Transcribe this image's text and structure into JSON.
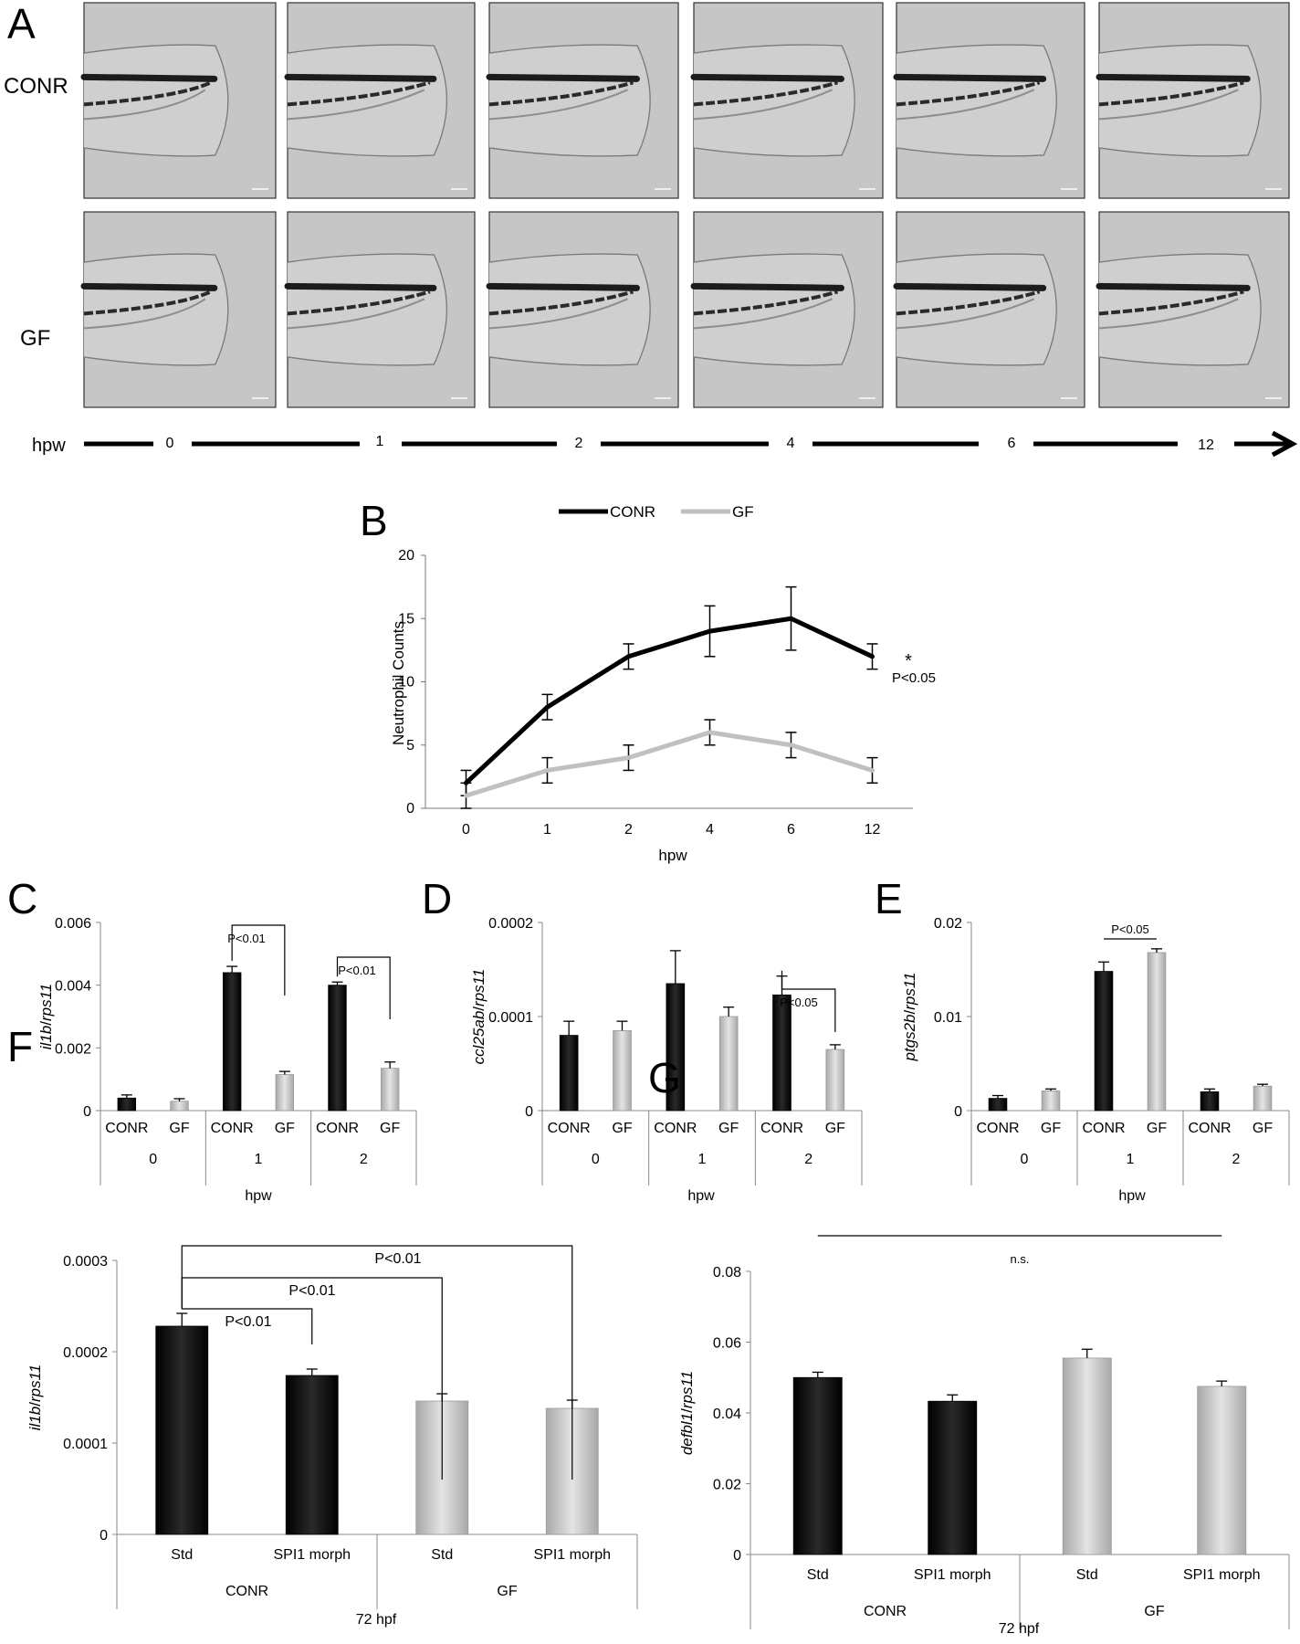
{
  "panel_a": {
    "letter": "A",
    "rows": [
      "CONR",
      "GF"
    ],
    "timeline_label": "hpw",
    "timepoints": [
      "0",
      "1",
      "2",
      "4",
      "6",
      "12"
    ]
  },
  "chart_data": [
    {
      "panel": "B",
      "type": "line",
      "ylabel": "Neutrophil Counts",
      "xlabel": "hpw",
      "categories": [
        "0",
        "1",
        "2",
        "4",
        "6",
        "12"
      ],
      "ylim": [
        0,
        20
      ],
      "yticks": [
        0,
        5,
        10,
        15,
        20
      ],
      "legend_position": "top",
      "series": [
        {
          "name": "CONR",
          "values": [
            2,
            8,
            12,
            14,
            15,
            12
          ],
          "errors": [
            1,
            1,
            1,
            2,
            2.5,
            1
          ],
          "color": "#000000"
        },
        {
          "name": "GF",
          "values": [
            1,
            3,
            4,
            6,
            5,
            3
          ],
          "errors": [
            1,
            1,
            1,
            1,
            1,
            1
          ],
          "color": "#c0c0c0"
        }
      ],
      "annotations": [
        "*",
        "P<0.05"
      ]
    },
    {
      "panel": "C",
      "type": "bar",
      "ylabel": "il1b/rps11",
      "xlabel": "hpw",
      "ylim": [
        0,
        0.006
      ],
      "yticks": [
        "0",
        "0.002",
        "0.004",
        "0.006"
      ],
      "groups": [
        "0",
        "1",
        "2"
      ],
      "bars": [
        {
          "label": "CONR",
          "group": "0",
          "value": 0.0004,
          "error": 0.0001,
          "color": "dark"
        },
        {
          "label": "GF",
          "group": "0",
          "value": 0.0003,
          "error": 8e-05,
          "color": "light"
        },
        {
          "label": "CONR",
          "group": "1",
          "value": 0.0044,
          "error": 0.0002,
          "color": "dark"
        },
        {
          "label": "GF",
          "group": "1",
          "value": 0.00115,
          "error": 0.0001,
          "color": "light"
        },
        {
          "label": "CONR",
          "group": "2",
          "value": 0.004,
          "error": 0.0001,
          "color": "dark"
        },
        {
          "label": "GF",
          "group": "2",
          "value": 0.00135,
          "error": 0.0002,
          "color": "light"
        }
      ],
      "significance": [
        {
          "from": 2,
          "to": 3,
          "label": "P<0.01"
        },
        {
          "from": 4,
          "to": 5,
          "label": "P<0.01"
        }
      ]
    },
    {
      "panel": "D",
      "type": "bar",
      "ylabel": "ccl25ab/rps11",
      "xlabel": "hpw",
      "ylim": [
        0,
        0.0002
      ],
      "yticks": [
        "0",
        "0.0001",
        "0.0002"
      ],
      "groups": [
        "0",
        "1",
        "2"
      ],
      "bars": [
        {
          "label": "CONR",
          "group": "0",
          "value": 8e-05,
          "error": 1.5e-05,
          "color": "dark"
        },
        {
          "label": "GF",
          "group": "0",
          "value": 8.5e-05,
          "error": 1e-05,
          "color": "light"
        },
        {
          "label": "CONR",
          "group": "1",
          "value": 0.000135,
          "error": 3.5e-05,
          "color": "dark"
        },
        {
          "label": "GF",
          "group": "1",
          "value": 0.0001,
          "error": 1e-05,
          "color": "light"
        },
        {
          "label": "CONR",
          "group": "2",
          "value": 0.000123,
          "error": 2e-05,
          "color": "dark"
        },
        {
          "label": "GF",
          "group": "2",
          "value": 6.5e-05,
          "error": 5e-06,
          "color": "light"
        }
      ],
      "significance": [
        {
          "from": 4,
          "to": 5,
          "label": "P<0.05"
        }
      ]
    },
    {
      "panel": "E",
      "type": "bar",
      "ylabel": "ptgs2b/rps11",
      "xlabel": "hpw",
      "ylim": [
        0,
        0.02
      ],
      "yticks": [
        "0",
        "0.01",
        "0.02"
      ],
      "groups": [
        "0",
        "1",
        "2"
      ],
      "bars": [
        {
          "label": "CONR",
          "group": "0",
          "value": 0.0013,
          "error": 0.0003,
          "color": "dark"
        },
        {
          "label": "GF",
          "group": "0",
          "value": 0.0021,
          "error": 0.0002,
          "color": "light"
        },
        {
          "label": "CONR",
          "group": "1",
          "value": 0.0148,
          "error": 0.001,
          "color": "dark"
        },
        {
          "label": "GF",
          "group": "1",
          "value": 0.0168,
          "error": 0.0004,
          "color": "light"
        },
        {
          "label": "CONR",
          "group": "2",
          "value": 0.002,
          "error": 0.0003,
          "color": "dark"
        },
        {
          "label": "GF",
          "group": "2",
          "value": 0.0026,
          "error": 0.0002,
          "color": "light"
        }
      ],
      "significance": [
        {
          "from": 2,
          "to": 3,
          "label": "P<0.05",
          "style": "flat"
        }
      ]
    },
    {
      "panel": "F",
      "type": "bar",
      "ylabel": "il1b/rps11",
      "xlabel": "72 hpf",
      "ylim": [
        0,
        0.0003
      ],
      "yticks": [
        "0",
        "0.0001",
        "0.0002",
        "0.0003"
      ],
      "groups": [
        "CONR",
        "GF"
      ],
      "bars": [
        {
          "label": "Std",
          "group": "CONR",
          "value": 0.000228,
          "error": 1.4e-05,
          "color": "dark"
        },
        {
          "label": "SPI1 morph",
          "group": "CONR",
          "value": 0.000174,
          "error": 7e-06,
          "color": "dark"
        },
        {
          "label": "Std",
          "group": "GF",
          "value": 0.000146,
          "error": 8e-06,
          "color": "light"
        },
        {
          "label": "SPI1 morph",
          "group": "GF",
          "value": 0.000138,
          "error": 9e-06,
          "color": "light"
        }
      ],
      "significance": [
        {
          "from": 0,
          "to": 1,
          "label": "P<0.01"
        },
        {
          "from": 0,
          "to": 2,
          "label": "P<0.01"
        },
        {
          "from": 0,
          "to": 3,
          "label": "P<0.01"
        }
      ]
    },
    {
      "panel": "G",
      "type": "bar",
      "ylabel": "defbl1/rps11",
      "xlabel": "72 hpf",
      "ylim": [
        0,
        0.08
      ],
      "yticks": [
        "0",
        "0.02",
        "0.04",
        "0.06",
        "0.08"
      ],
      "groups": [
        "CONR",
        "GF"
      ],
      "bars": [
        {
          "label": "Std",
          "group": "CONR",
          "value": 0.05,
          "error": 0.0015,
          "color": "dark"
        },
        {
          "label": "SPI1 morph",
          "group": "CONR",
          "value": 0.0433,
          "error": 0.0018,
          "color": "dark"
        },
        {
          "label": "Std",
          "group": "GF",
          "value": 0.0555,
          "error": 0.0025,
          "color": "light"
        },
        {
          "label": "SPI1 morph",
          "group": "GF",
          "value": 0.0475,
          "error": 0.0015,
          "color": "light"
        }
      ],
      "significance": [
        {
          "from": 0,
          "to": 3,
          "label": "n.s.",
          "style": "ns"
        }
      ]
    }
  ]
}
